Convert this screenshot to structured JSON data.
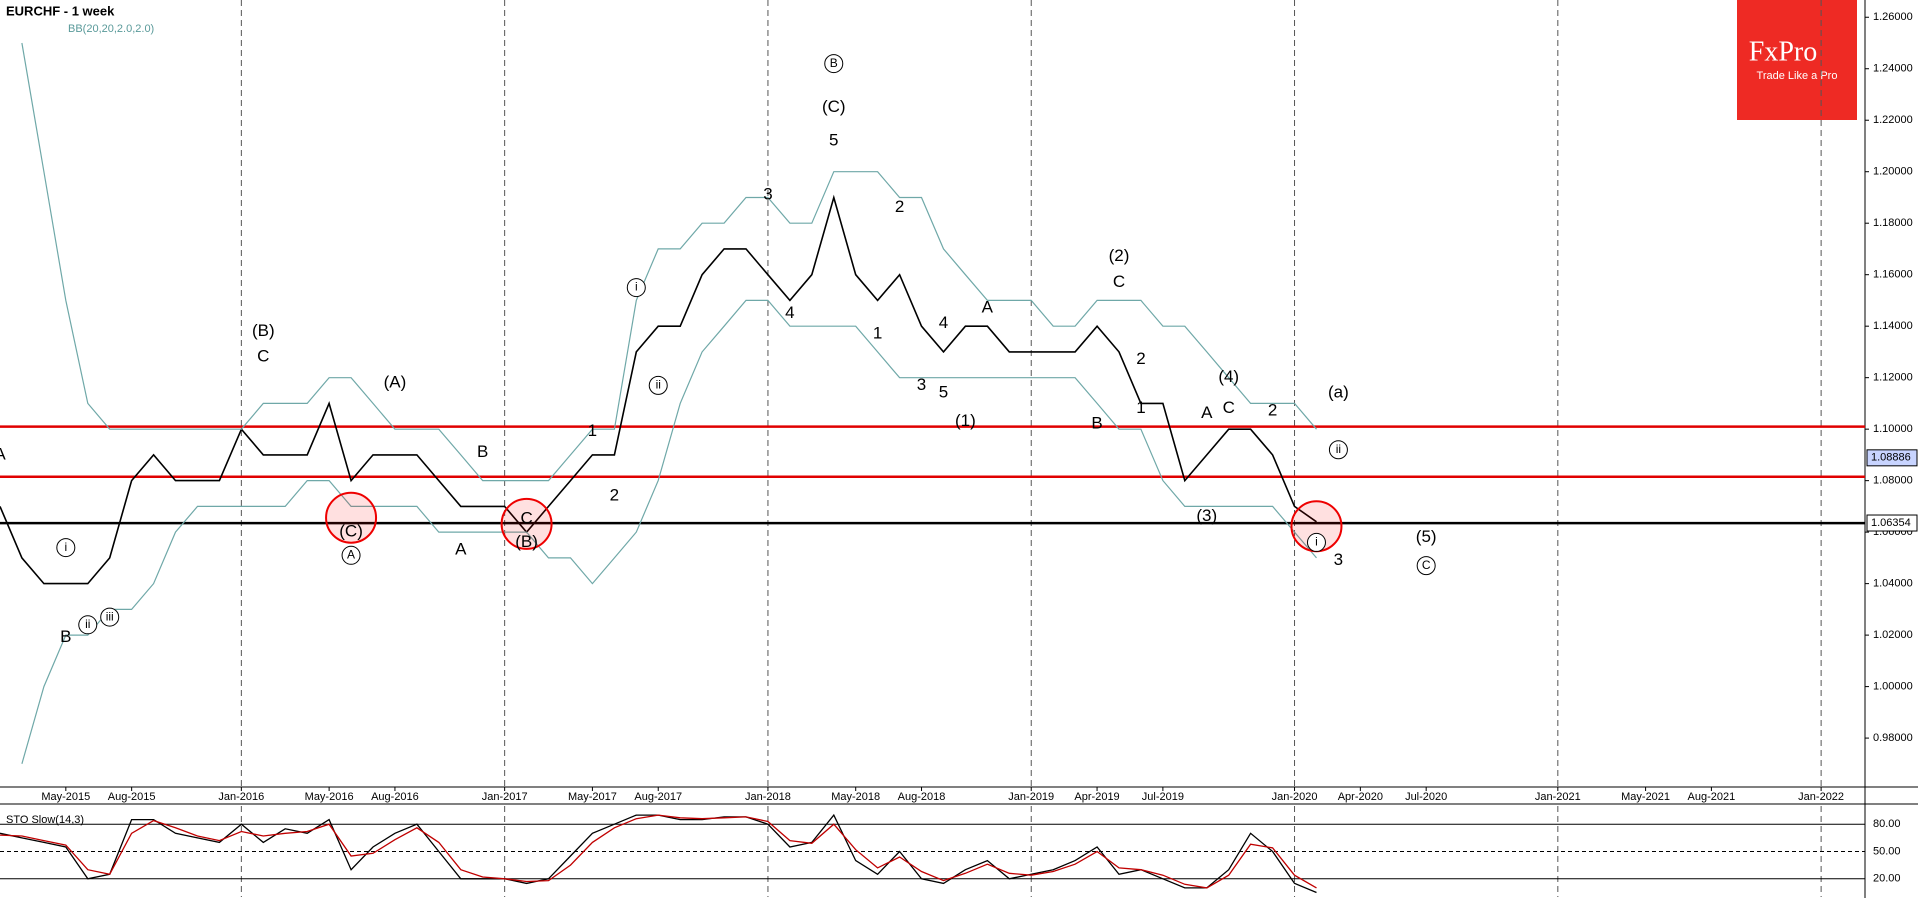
{
  "chart_data": {
    "type": "line",
    "title": "EURCHF - 1 week",
    "indicator": "BB(20,20,2.0,2.0)",
    "x": [
      "2015-02",
      "2015-03",
      "2015-04",
      "2015-05",
      "2015-06",
      "2015-07",
      "2015-08",
      "2015-09",
      "2015-10",
      "2015-11",
      "2015-12",
      "2016-01",
      "2016-02",
      "2016-03",
      "2016-04",
      "2016-05",
      "2016-06",
      "2016-07",
      "2016-08",
      "2016-09",
      "2016-10",
      "2016-11",
      "2016-12",
      "2017-01",
      "2017-02",
      "2017-03",
      "2017-04",
      "2017-05",
      "2017-06",
      "2017-07",
      "2017-08",
      "2017-09",
      "2017-10",
      "2017-11",
      "2017-12",
      "2018-01",
      "2018-02",
      "2018-03",
      "2018-04",
      "2018-05",
      "2018-06",
      "2018-07",
      "2018-08",
      "2018-09",
      "2018-10",
      "2018-11",
      "2018-12",
      "2019-01",
      "2019-02",
      "2019-03",
      "2019-04",
      "2019-05",
      "2019-06",
      "2019-07",
      "2019-08",
      "2019-09",
      "2019-10",
      "2019-11",
      "2019-12",
      "2020-01",
      "2020-02"
    ],
    "series": [
      {
        "color": "#000000",
        "values": [
          1.07,
          1.05,
          1.04,
          1.04,
          1.04,
          1.05,
          1.08,
          1.09,
          1.08,
          1.08,
          1.08,
          1.1,
          1.09,
          1.09,
          1.09,
          1.11,
          1.08,
          1.09,
          1.09,
          1.09,
          1.08,
          1.07,
          1.07,
          1.07,
          1.06,
          1.07,
          1.08,
          1.09,
          1.09,
          1.13,
          1.14,
          1.14,
          1.16,
          1.17,
          1.17,
          1.16,
          1.15,
          1.16,
          1.19,
          1.16,
          1.15,
          1.16,
          1.14,
          1.13,
          1.14,
          1.14,
          1.13,
          1.13,
          1.13,
          1.13,
          1.14,
          1.13,
          1.11,
          1.11,
          1.08,
          1.09,
          1.1,
          1.1,
          1.09,
          1.07,
          1.064
        ]
      },
      {
        "color": "#6fa8a8",
        "values": [
          null,
          1.25,
          1.2,
          1.15,
          1.11,
          1.1,
          1.1,
          1.1,
          1.1,
          1.1,
          1.1,
          1.1,
          1.11,
          1.11,
          1.11,
          1.12,
          1.12,
          1.11,
          1.1,
          1.1,
          1.1,
          1.09,
          1.08,
          1.08,
          1.08,
          1.08,
          1.09,
          1.1,
          1.1,
          1.15,
          1.17,
          1.17,
          1.18,
          1.18,
          1.19,
          1.19,
          1.18,
          1.18,
          1.2,
          1.2,
          1.2,
          1.19,
          1.19,
          1.17,
          1.16,
          1.15,
          1.15,
          1.15,
          1.14,
          1.14,
          1.15,
          1.15,
          1.15,
          1.14,
          1.14,
          1.13,
          1.12,
          1.11,
          1.11,
          1.11,
          1.1
        ]
      },
      {
        "color": "#6fa8a8",
        "values": [
          null,
          0.97,
          1.0,
          1.02,
          1.02,
          1.03,
          1.03,
          1.04,
          1.06,
          1.07,
          1.07,
          1.07,
          1.07,
          1.07,
          1.08,
          1.08,
          1.07,
          1.07,
          1.07,
          1.07,
          1.06,
          1.06,
          1.06,
          1.06,
          1.06,
          1.05,
          1.05,
          1.04,
          1.05,
          1.06,
          1.08,
          1.11,
          1.13,
          1.14,
          1.15,
          1.15,
          1.14,
          1.14,
          1.14,
          1.14,
          1.13,
          1.12,
          1.12,
          1.12,
          1.12,
          1.12,
          1.12,
          1.12,
          1.12,
          1.12,
          1.11,
          1.1,
          1.1,
          1.08,
          1.07,
          1.07,
          1.07,
          1.07,
          1.07,
          1.06,
          1.05
        ]
      }
    ],
    "xlim": [
      "2015-02",
      "2022-03"
    ],
    "xticks": [
      {
        "value": "2015-05",
        "label": "May-2015"
      },
      {
        "value": "2015-08",
        "label": "Aug-2015"
      },
      {
        "value": "2016-01",
        "label": "Jan-2016"
      },
      {
        "value": "2016-05",
        "label": "May-2016"
      },
      {
        "value": "2016-08",
        "label": "Aug-2016"
      },
      {
        "value": "2017-01",
        "label": "Jan-2017"
      },
      {
        "value": "2017-05",
        "label": "May-2017"
      },
      {
        "value": "2017-08",
        "label": "Aug-2017"
      },
      {
        "value": "2018-01",
        "label": "Jan-2018"
      },
      {
        "value": "2018-05",
        "label": "May-2018"
      },
      {
        "value": "2018-08",
        "label": "Aug-2018"
      },
      {
        "value": "2019-01",
        "label": "Jan-2019"
      },
      {
        "value": "2019-04",
        "label": "Apr-2019"
      },
      {
        "value": "2019-07",
        "label": "Jul-2019"
      },
      {
        "value": "2020-01",
        "label": "Jan-2020"
      },
      {
        "value": "2020-04",
        "label": "Apr-2020"
      },
      {
        "value": "2020-07",
        "label": "Jul-2020"
      },
      {
        "value": "2021-01",
        "label": "Jan-2021"
      },
      {
        "value": "2021-05",
        "label": "May-2021"
      },
      {
        "value": "2021-08",
        "label": "Aug-2021"
      },
      {
        "value": "2022-01",
        "label": "Jan-2022"
      }
    ],
    "ylim": [
      0.961,
      1.2667
    ],
    "yticks": [
      {
        "value": 0.98,
        "label": "0.98000"
      },
      {
        "value": 1.0,
        "label": "1.00000"
      },
      {
        "value": 1.02,
        "label": "1.02000"
      },
      {
        "value": 1.04,
        "label": "1.04000"
      },
      {
        "value": 1.06,
        "label": "1.06000"
      },
      {
        "value": 1.08,
        "label": "1.08000"
      },
      {
        "value": 1.1,
        "label": "1.10000"
      },
      {
        "value": 1.12,
        "label": "1.12000"
      },
      {
        "value": 1.14,
        "label": "1.14000"
      },
      {
        "value": 1.16,
        "label": "1.16000"
      },
      {
        "value": 1.18,
        "label": "1.18000"
      },
      {
        "value": 1.2,
        "label": "1.20000"
      },
      {
        "value": 1.22,
        "label": "1.22000"
      },
      {
        "value": 1.24,
        "label": "1.24000"
      },
      {
        "value": 1.26,
        "label": "1.26000"
      }
    ],
    "levels": [
      {
        "value": 1.101,
        "color": "#e00000"
      },
      {
        "value": 1.0815,
        "color": "#e00000"
      },
      {
        "value": 1.0635,
        "color": "#000000"
      }
    ],
    "price_labels": [
      {
        "value": 1.08886,
        "color": "#c8d4ff"
      },
      {
        "value": 1.06354,
        "color": "#ffffff"
      }
    ],
    "highlights": [
      {
        "x": "2016-06",
        "y": 1.0656
      },
      {
        "x": "2017-02",
        "y": 1.0632
      },
      {
        "x": "2020-02",
        "y": 1.0623
      }
    ],
    "annotations": [
      {
        "x": "2015-02",
        "y": 1.09,
        "text": "A"
      },
      {
        "x": "2015-05",
        "y": 1.019,
        "text": "B"
      },
      {
        "x": "2015-05",
        "y": 1.054,
        "text": "i",
        "circled": true
      },
      {
        "x": "2015-06",
        "y": 1.024,
        "text": "ii",
        "circled": true
      },
      {
        "x": "2015-07",
        "y": 1.027,
        "text": "iii",
        "circled": true
      },
      {
        "x": "2016-02",
        "y": 1.138,
        "text": "(B)"
      },
      {
        "x": "2016-02",
        "y": 1.128,
        "text": "C"
      },
      {
        "x": "2016-08",
        "y": 1.118,
        "text": "(A)"
      },
      {
        "x": "2016-06",
        "y": 1.06,
        "text": "(C)"
      },
      {
        "x": "2016-06",
        "y": 1.051,
        "text": "A",
        "circled": true
      },
      {
        "x": "2016-12",
        "y": 1.091,
        "text": "B"
      },
      {
        "x": "2016-11",
        "y": 1.053,
        "text": "A"
      },
      {
        "x": "2017-02",
        "y": 1.065,
        "text": "C"
      },
      {
        "x": "2017-02",
        "y": 1.056,
        "text": "(B)"
      },
      {
        "x": "2017-05",
        "y": 1.099,
        "text": "1"
      },
      {
        "x": "2017-06",
        "y": 1.074,
        "text": "2"
      },
      {
        "x": "2017-07",
        "y": 1.155,
        "text": "i",
        "circled": true
      },
      {
        "x": "2017-08",
        "y": 1.117,
        "text": "ii",
        "circled": true
      },
      {
        "x": "2018-01",
        "y": 1.191,
        "text": "3"
      },
      {
        "x": "2018-02",
        "y": 1.145,
        "text": "4"
      },
      {
        "x": "2018-04",
        "y": 1.242,
        "text": "B",
        "circled": true
      },
      {
        "x": "2018-04",
        "y": 1.225,
        "text": "(C)"
      },
      {
        "x": "2018-04",
        "y": 1.212,
        "text": "5"
      },
      {
        "x": "2018-06",
        "y": 1.137,
        "text": "1"
      },
      {
        "x": "2018-07",
        "y": 1.186,
        "text": "2"
      },
      {
        "x": "2018-08",
        "y": 1.117,
        "text": "3"
      },
      {
        "x": "2018-09",
        "y": 1.141,
        "text": "4"
      },
      {
        "x": "2018-09",
        "y": 1.114,
        "text": "5"
      },
      {
        "x": "2018-10",
        "y": 1.103,
        "text": "(1)"
      },
      {
        "x": "2018-11",
        "y": 1.147,
        "text": "A"
      },
      {
        "x": "2019-05",
        "y": 1.167,
        "text": "(2)"
      },
      {
        "x": "2019-05",
        "y": 1.157,
        "text": "C"
      },
      {
        "x": "2019-04",
        "y": 1.102,
        "text": "B"
      },
      {
        "x": "2019-06",
        "y": 1.127,
        "text": "2"
      },
      {
        "x": "2019-06",
        "y": 1.108,
        "text": "1"
      },
      {
        "x": "2019-10",
        "y": 1.12,
        "text": "(4)"
      },
      {
        "x": "2019-10",
        "y": 1.108,
        "text": "C"
      },
      {
        "x": "2019-09",
        "y": 1.106,
        "text": "A"
      },
      {
        "x": "2019-12",
        "y": 1.107,
        "text": "2"
      },
      {
        "x": "2019-09",
        "y": 1.066,
        "text": "(3)"
      },
      {
        "x": "2020-03",
        "y": 1.114,
        "text": "(a)"
      },
      {
        "x": "2020-03",
        "y": 1.092,
        "text": "ii",
        "circled": true
      },
      {
        "x": "2020-02",
        "y": 1.056,
        "text": "i",
        "circled": true
      },
      {
        "x": "2020-03",
        "y": 1.049,
        "text": "3"
      },
      {
        "x": "2020-07",
        "y": 1.058,
        "text": "(5)"
      },
      {
        "x": "2020-07",
        "y": 1.047,
        "text": "C",
        "circled": true
      }
    ],
    "oscillator": {
      "title": "STO Slow(14,3)",
      "ylim": [
        0,
        100
      ],
      "yticks": [
        {
          "value": 20,
          "label": "20.00"
        },
        {
          "value": 50,
          "label": "50.00"
        },
        {
          "value": 80,
          "label": "80.00"
        }
      ],
      "series": [
        {
          "color": "#000000",
          "values": [
            70,
            65,
            60,
            55,
            20,
            25,
            85,
            85,
            70,
            65,
            60,
            80,
            60,
            75,
            70,
            85,
            30,
            55,
            70,
            80,
            50,
            20,
            20,
            20,
            15,
            20,
            45,
            70,
            80,
            90,
            90,
            85,
            85,
            88,
            88,
            80,
            55,
            60,
            90,
            40,
            25,
            50,
            20,
            15,
            30,
            40,
            20,
            25,
            30,
            40,
            55,
            25,
            30,
            20,
            10,
            10,
            30,
            70,
            50,
            15,
            5
          ]
        },
        {
          "color": "#c00000",
          "values": [
            68,
            67,
            62,
            57,
            30,
            25,
            70,
            84,
            76,
            67,
            62,
            72,
            67,
            70,
            72,
            80,
            45,
            48,
            63,
            76,
            60,
            30,
            22,
            20,
            17,
            18,
            35,
            60,
            76,
            86,
            90,
            87,
            86,
            87,
            88,
            83,
            62,
            59,
            80,
            52,
            32,
            44,
            28,
            18,
            26,
            36,
            26,
            24,
            28,
            36,
            50,
            32,
            30,
            24,
            14,
            10,
            24,
            58,
            54,
            24,
            10
          ]
        }
      ]
    },
    "brand": {
      "name": "FxPro",
      "tagline": "Trade Like a Pro"
    }
  }
}
